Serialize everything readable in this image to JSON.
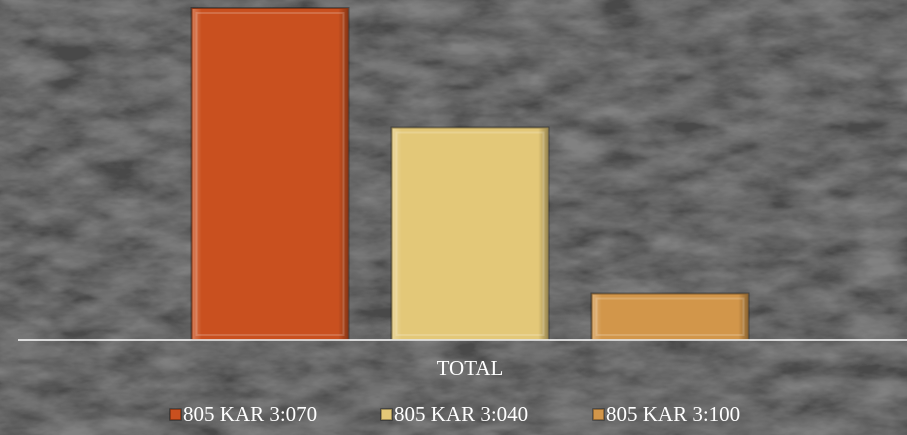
{
  "chart_data": {
    "type": "bar",
    "categories": [
      "TOTAL"
    ],
    "series": [
      {
        "name": "805 KAR 3:070",
        "color": "#c9501f",
        "values": [
          100
        ]
      },
      {
        "name": "805 KAR 3:040",
        "color": "#e3c878",
        "values": [
          64
        ]
      },
      {
        "name": "805 KAR 3:100",
        "color": "#d2964a",
        "values": [
          14
        ]
      }
    ],
    "ylim": [
      0,
      100
    ]
  }
}
